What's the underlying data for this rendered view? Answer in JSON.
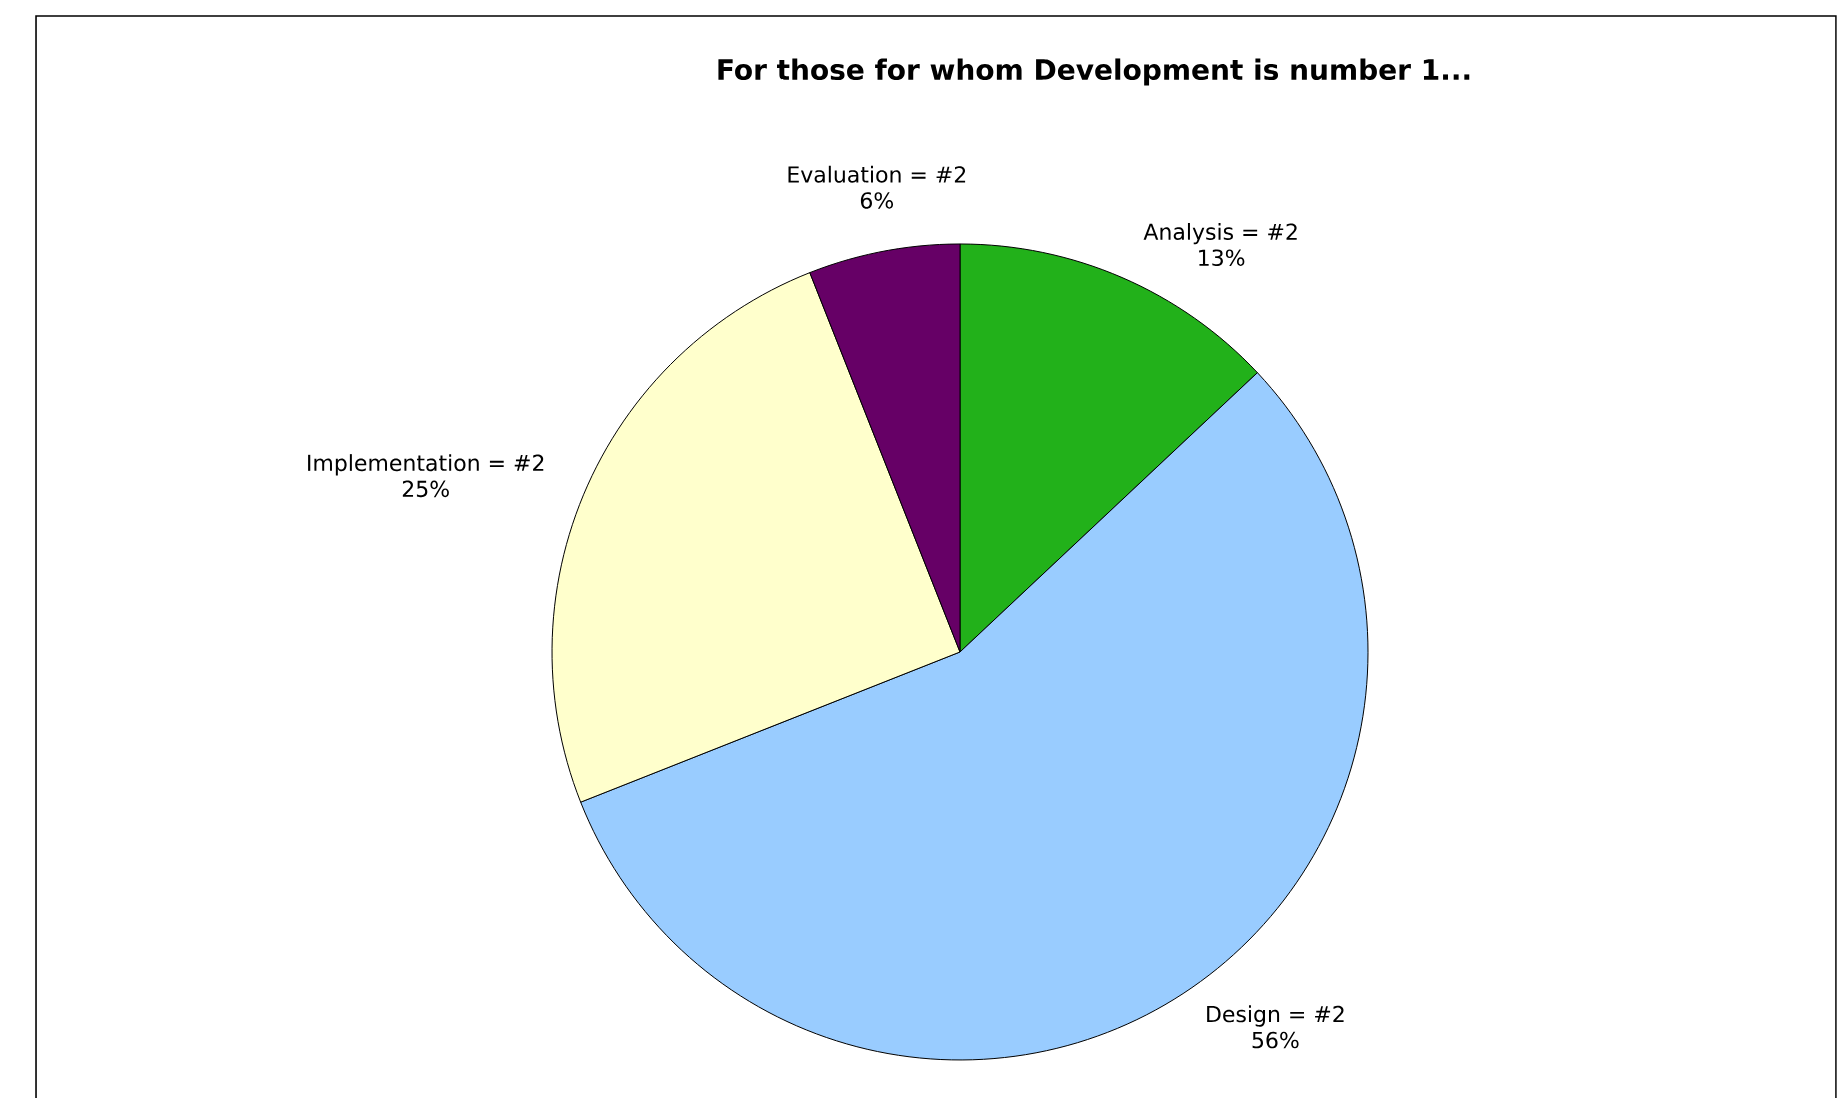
{
  "chart_data": {
    "type": "pie",
    "title": "For those for whom Development is number 1...",
    "categories": [
      "Analysis = #2",
      "Design = #2",
      "Implementation = #2",
      "Evaluation = #2"
    ],
    "values": [
      13,
      56,
      25,
      6
    ],
    "value_labels": [
      "13%",
      "56%",
      "25%",
      "6%"
    ],
    "colors": [
      "#22b11a",
      "#99ccff",
      "#ffffcc",
      "#660066"
    ]
  }
}
